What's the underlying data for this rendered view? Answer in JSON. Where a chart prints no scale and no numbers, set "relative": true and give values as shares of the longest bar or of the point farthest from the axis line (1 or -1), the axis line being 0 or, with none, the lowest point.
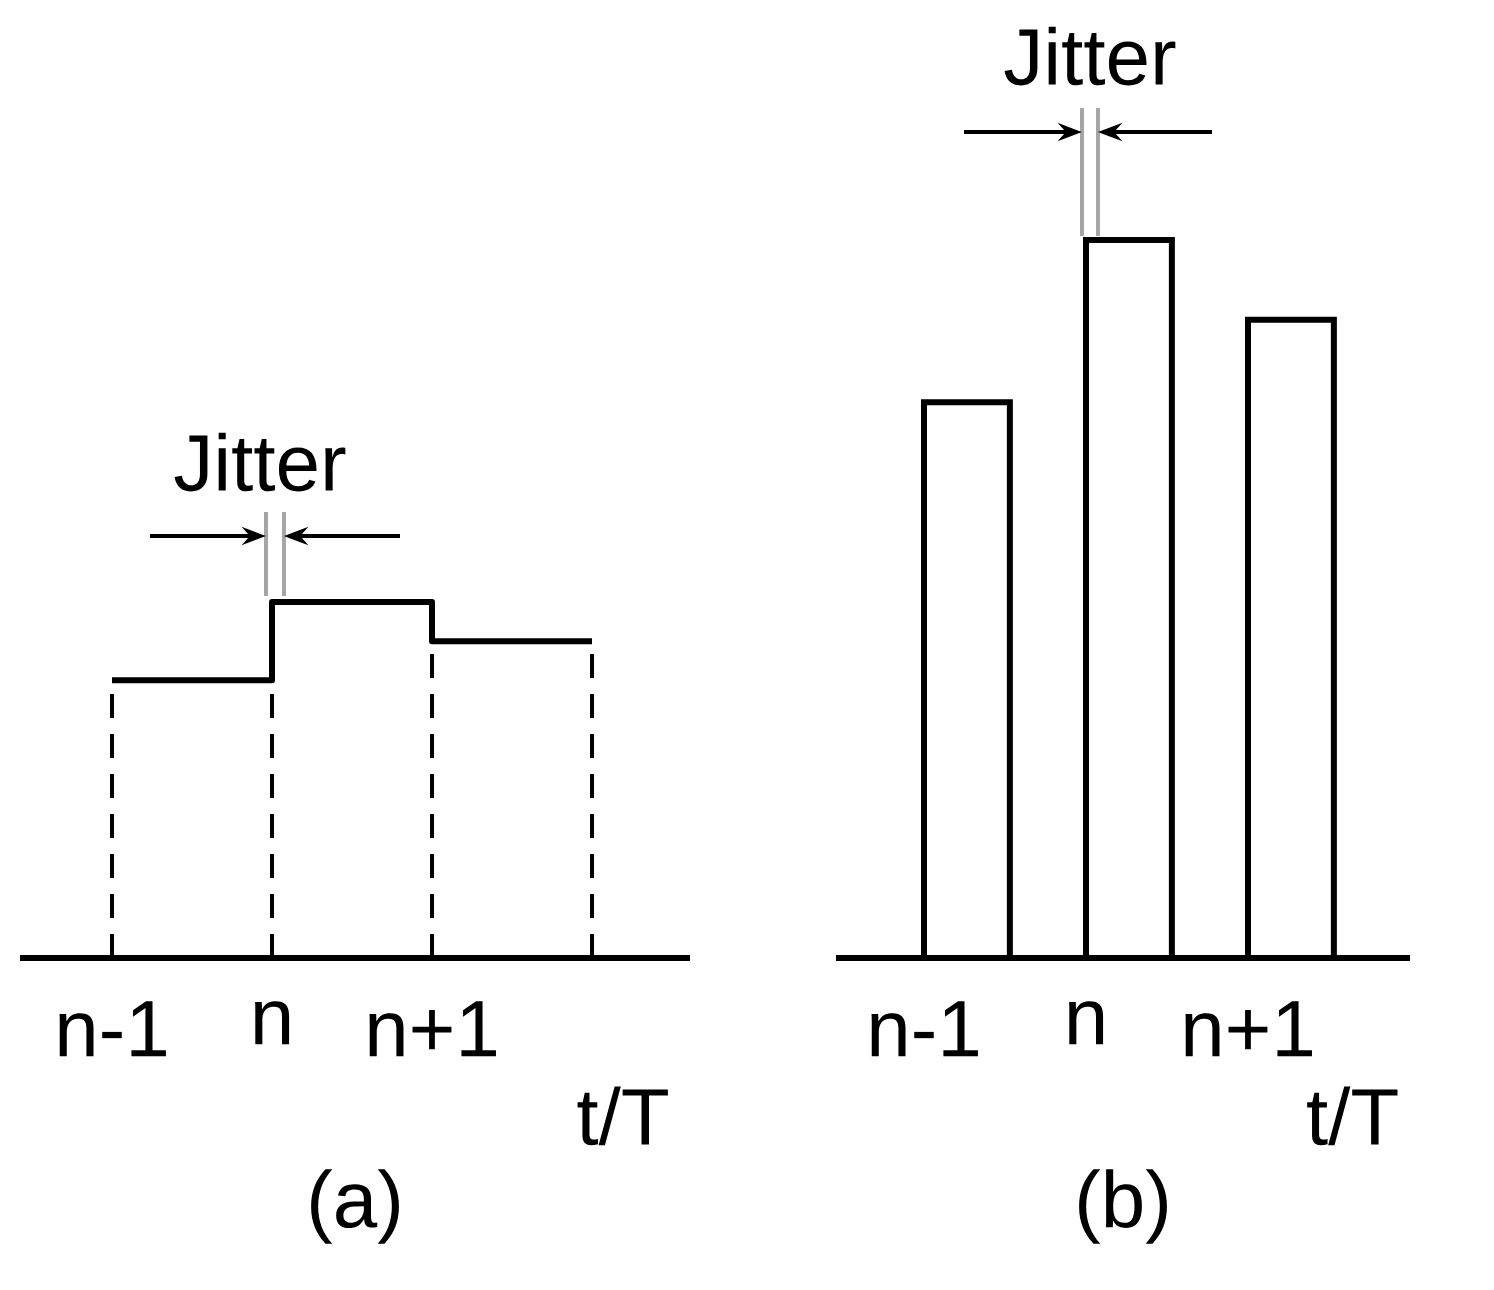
{
  "chart_data": [
    {
      "type": "step",
      "relative": true,
      "categories": [
        "n-1",
        "n",
        "n+1",
        null
      ],
      "values": [
        0.78,
        1,
        0.89,
        0.89
      ],
      "color": "#000000",
      "xlabel": "t/T",
      "title": "(a)",
      "annotations": [
        "Jitter"
      ],
      "grid": "x"
    },
    {
      "type": "bar",
      "relative": true,
      "categories": [
        "n-1",
        "n",
        "n+1"
      ],
      "values": [
        0.774,
        1,
        0.889
      ],
      "color": "#ffffff",
      "xlabel": "t/T",
      "title": "(b)",
      "annotations": [
        "Jitter"
      ]
    }
  ]
}
